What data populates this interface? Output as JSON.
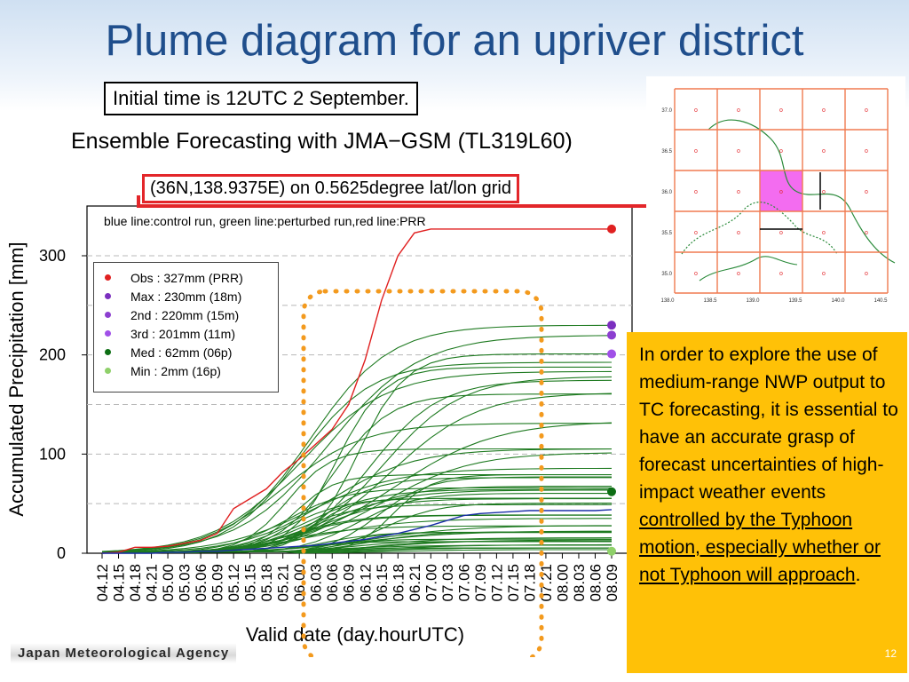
{
  "slide": {
    "title": "Plume diagram for an upriver district",
    "initial_time": "Initial time is 12UTC 2 September.",
    "ensemble_title": "Ensemble Forecasting with JMA−GSM (TL319L60)",
    "grid_label": "(36N,138.9375E) on 0.5625degree lat/lon grid",
    "agency": "Japan Meteorological Agency",
    "page_number": "12",
    "text": {
      "lead": "In order to explore the use of medium-range NWP output to TC forecasting, it is essential to have an accurate grasp of forecast uncertainties of high-impact weather events ",
      "underlined": "controlled by the Typhoon motion, especially whether or not Typhoon will approach",
      "end": "."
    }
  },
  "chart_data": {
    "type": "line",
    "caption": "blue line:control run, green line:perturbed run,red line:PRR",
    "xlabel": "Valid date (day.hourUTC)",
    "ylabel": "Accumulated Precipitation [mm]",
    "ylim": [
      0,
      340
    ],
    "yticks": [
      0,
      100,
      200,
      300
    ],
    "grid": true,
    "categories": [
      "04.12",
      "04.15",
      "04.18",
      "04.21",
      "05.00",
      "05.03",
      "05.06",
      "05.09",
      "05.12",
      "05.15",
      "05.18",
      "05.21",
      "06.00",
      "06.03",
      "06.06",
      "06.09",
      "06.12",
      "06.15",
      "06.18",
      "06.21",
      "07.00",
      "07.03",
      "07.06",
      "07.09",
      "07.12",
      "07.15",
      "07.18",
      "07.21",
      "08.00",
      "08.03",
      "08.06",
      "08.09"
    ],
    "series": [
      {
        "name": "PRR",
        "color": "#e02020",
        "values": [
          0,
          1,
          6,
          6,
          7,
          10,
          13,
          20,
          45,
          55,
          65,
          82,
          95,
          110,
          125,
          150,
          195,
          255,
          300,
          323,
          327,
          327,
          327,
          327,
          327,
          327,
          327,
          327,
          327,
          327,
          327,
          327
        ]
      },
      {
        "name": "control run",
        "color": "#1a2ea8",
        "values": [
          0,
          0,
          0,
          0,
          1,
          1,
          2,
          2,
          3,
          4,
          5,
          6,
          7,
          8,
          10,
          12,
          14,
          17,
          20,
          24,
          28,
          33,
          38,
          40,
          41,
          42,
          43,
          43,
          43,
          43,
          43,
          44
        ]
      }
    ],
    "legend": [
      {
        "label": "Obs : 327mm (PRR)",
        "color": "#e02020",
        "value": 327
      },
      {
        "label": "Max : 230mm (18m)",
        "color": "#7b2fbf",
        "value": 230
      },
      {
        "label": "2nd : 220mm (15m)",
        "color": "#8c3fd0",
        "value": 220
      },
      {
        "label": "3rd : 201mm (11m)",
        "color": "#a050e8",
        "value": 201
      },
      {
        "label": "Med : 62mm (06p)",
        "color": "#0d6e14",
        "value": 62
      },
      {
        "label": "Min : 2mm (16p)",
        "color": "#8fd06a",
        "value": 2
      }
    ],
    "map": {
      "lat_ticks": [
        "37.0",
        "36.5",
        "36.0",
        "35.5",
        "35.0"
      ],
      "lon_ticks": [
        "138.0",
        "138.5",
        "139.0",
        "139.5",
        "140.0",
        "140.5"
      ],
      "highlight_color": "#f36cf0"
    }
  }
}
